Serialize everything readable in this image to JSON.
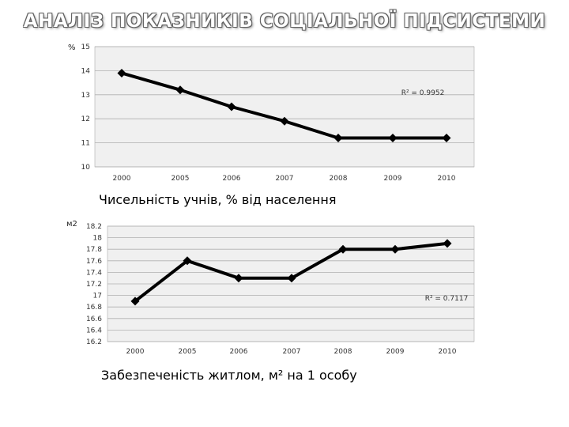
{
  "title": "АНАЛІЗ ПОКАЗНИКІВ СОЦІАЛЬНОЇ ПІДСИСТЕМИ",
  "colors": {
    "line": "#000000",
    "plot_bg": "#f0f0f0",
    "grid": "#b0b0b0"
  },
  "chart_data": [
    {
      "type": "line",
      "title": "Чисельність учнів, % від населення",
      "ylabel": "%",
      "categories": [
        "2000",
        "2005",
        "2006",
        "2007",
        "2008",
        "2009",
        "2010"
      ],
      "values": [
        13.9,
        13.2,
        12.5,
        11.9,
        11.2,
        11.2,
        11.2
      ],
      "ylim": [
        10,
        15
      ],
      "yticks": [
        "15",
        "14",
        "13",
        "12",
        "11",
        "10"
      ],
      "ytick_values": [
        15,
        14,
        13,
        12,
        11,
        10
      ],
      "grid": true,
      "annotation": "R² = 0.9952"
    },
    {
      "type": "line",
      "title": "Забезпеченість житлом, м² на 1 особу",
      "ylabel": "м2",
      "categories": [
        "2000",
        "2005",
        "2006",
        "2007",
        "2008",
        "2009",
        "2010"
      ],
      "values": [
        16.9,
        17.6,
        17.3,
        17.3,
        17.8,
        17.8,
        17.9
      ],
      "ylim": [
        16.2,
        18.2
      ],
      "yticks": [
        "18.2",
        "18",
        "17.8",
        "17.6",
        "17.4",
        "17.2",
        "17",
        "16.8",
        "16.6",
        "16.4",
        "16.2"
      ],
      "ytick_values": [
        18.2,
        18,
        17.8,
        17.6,
        17.4,
        17.2,
        17,
        16.8,
        16.6,
        16.4,
        16.2
      ],
      "grid": true,
      "annotation": "R² = 0.7117"
    }
  ]
}
